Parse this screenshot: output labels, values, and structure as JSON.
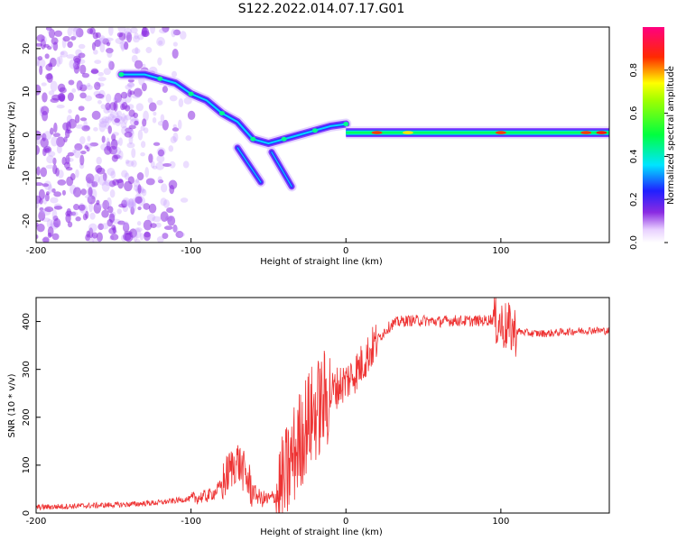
{
  "title": "S122.2022.014.07.17.G01",
  "chart_data": [
    {
      "type": "heatmap",
      "xlabel": "Height of straight line (km)",
      "ylabel": "Frequency (Hz)",
      "xlim": [
        -200,
        170
      ],
      "ylim": [
        -25,
        25
      ],
      "x_ticks": [
        "-200",
        "-100",
        "0",
        "100"
      ],
      "y_ticks": [
        "20",
        "10",
        "0",
        "-10",
        "-20"
      ],
      "colorbar": {
        "label": "Normalized spectral amplitude",
        "range": [
          0,
          1
        ],
        "ticks": [
          "0.0",
          "0.2",
          "0.4",
          "0.6",
          "0.8"
        ],
        "colormap": "rainbow (white → violet → blue → cyan → green → yellow → red → magenta)"
      },
      "features": {
        "noise_region_x": [
          -200,
          -95
        ],
        "dispersed_trace": {
          "x": [
            -145,
            -130,
            -120,
            -110,
            -100,
            -90,
            -80,
            -70,
            -60,
            -50,
            -40,
            -30,
            -20,
            -10,
            0
          ],
          "y": [
            14,
            14,
            13,
            12,
            9.5,
            8,
            5,
            3,
            -1,
            -2,
            -1,
            0,
            1,
            2,
            2.5
          ]
        },
        "secondary_branches": [
          {
            "x": [
              -70,
              -55
            ],
            "y": [
              -3,
              -11
            ]
          },
          {
            "x": [
              -48,
              -35
            ],
            "y": [
              -4,
              -12
            ]
          }
        ],
        "steady_band": {
          "x": [
            0,
            170
          ],
          "y": 0.5
        }
      }
    },
    {
      "type": "line",
      "xlabel": "Height of straight line (km)",
      "ylabel": "SNR (10 * v/v)",
      "xlim": [
        -200,
        170
      ],
      "ylim": [
        0,
        450
      ],
      "x_ticks": [
        "-200",
        "-100",
        "0",
        "100"
      ],
      "y_ticks": [
        "0",
        "100",
        "200",
        "300",
        "400"
      ],
      "color": "#ee3333",
      "series": [
        {
          "x": [
            -200,
            -180,
            -160,
            -140,
            -120,
            -110,
            -100,
            -90,
            -85,
            -80,
            -75,
            -70,
            -65,
            -60,
            -55,
            -50,
            -45,
            -40,
            -35,
            -30,
            -25,
            -20,
            -15,
            -10,
            -5,
            0,
            5,
            10,
            15,
            20,
            25,
            30,
            35,
            40,
            50,
            60,
            70,
            80,
            90,
            95,
            100,
            105,
            110,
            120,
            130,
            140,
            150,
            160,
            170
          ],
          "y": [
            12,
            14,
            16,
            18,
            22,
            26,
            30,
            35,
            42,
            60,
            90,
            110,
            80,
            45,
            30,
            28,
            35,
            60,
            110,
            150,
            190,
            210,
            230,
            250,
            265,
            275,
            290,
            310,
            335,
            360,
            380,
            395,
            400,
            402,
            402,
            400,
            402,
            401,
            402,
            405,
            395,
            385,
            380,
            375,
            375,
            378,
            380,
            382,
            380
          ]
        }
      ]
    }
  ]
}
